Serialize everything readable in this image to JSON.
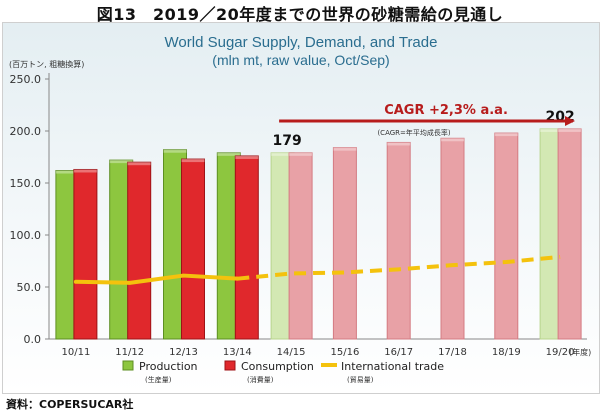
{
  "figure": {
    "title": "図13　2019／20年度までの世界の砂糖需給の見通し",
    "source": "資料：COPERSUCAR社"
  },
  "colors": {
    "production": "#8dc63f",
    "consumption": "#e0282c",
    "trade": "#f4c20d",
    "cagr_arrow": "#b71c1c",
    "background_top": "#e4eef2"
  },
  "chart_data": {
    "type": "bar",
    "title": "World Sugar Supply, Demand, and Trade",
    "subtitle": "(mln mt, raw value, Oct/Sep)",
    "ylabel": "(百万トン, 粗糖換算)",
    "xlabel_unit": "(年度)",
    "ylim": [
      0,
      250
    ],
    "yticks": [
      "0.0",
      "50.0",
      "100.0",
      "150.0",
      "200.0",
      "250.0"
    ],
    "grid": false,
    "legend_position": "bottom",
    "categories": [
      "10/11",
      "11/12",
      "12/13",
      "13/14",
      "14/15",
      "15/16",
      "16/17",
      "17/18",
      "18/19",
      "19/20"
    ],
    "projection_start_index": 4,
    "series": [
      {
        "name": "Production",
        "name_ja": "(生産量)",
        "type": "bar",
        "values": [
          162,
          172,
          182,
          179,
          179,
          null,
          null,
          null,
          null,
          202
        ]
      },
      {
        "name": "Consumption",
        "name_ja": "(消費量)",
        "type": "bar",
        "values": [
          163,
          170,
          173,
          176,
          179,
          184,
          189,
          193,
          198,
          202
        ]
      },
      {
        "name": "International trade",
        "name_ja": "(貿易量)",
        "type": "line",
        "values": [
          55,
          54,
          61,
          58,
          63,
          64,
          67,
          71,
          74,
          79
        ]
      }
    ],
    "annotations": [
      {
        "text": "179",
        "category": "14/15",
        "value": 179
      },
      {
        "text": "202",
        "category": "19/20",
        "value": 202
      },
      {
        "text": "CAGR +2,3% a.a.",
        "from": "14/15",
        "to": "19/20"
      },
      {
        "text": "(CAGR=年平均成長率)"
      }
    ]
  }
}
